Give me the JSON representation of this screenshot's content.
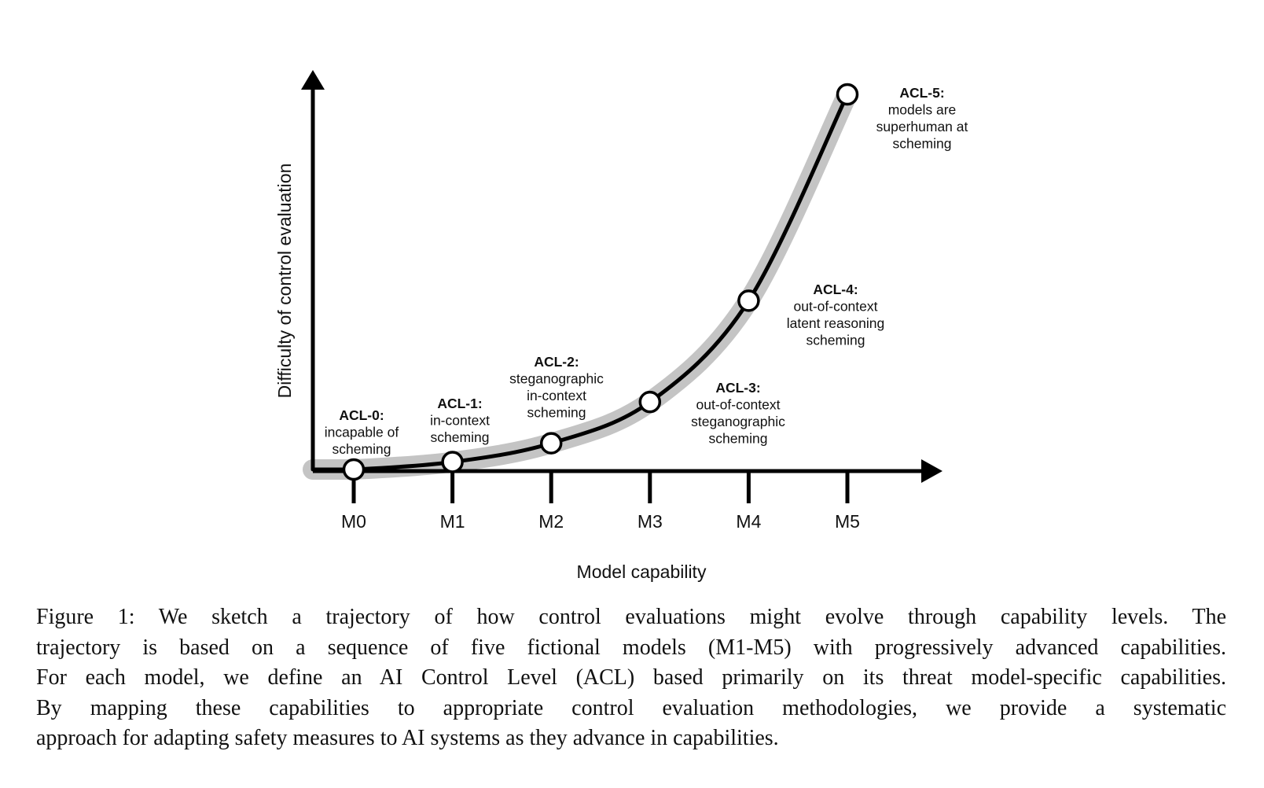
{
  "figure": {
    "y_axis_label": "Difficulty of control evaluation",
    "x_axis_label": "Model capability",
    "colors": {
      "curve": "#000000",
      "band": "#c4c4c4",
      "marker_fill": "#ffffff",
      "axis": "#000000"
    }
  },
  "chart_data": {
    "type": "line",
    "x": [
      "M0",
      "M1",
      "M2",
      "M3",
      "M4",
      "M5"
    ],
    "series": [
      {
        "values": [
          0.0,
          0.02,
          0.07,
          0.18,
          0.45,
          1.0
        ]
      }
    ],
    "ylim": [
      0,
      1.0
    ],
    "grid": false,
    "levels": [
      {
        "model": "M0",
        "title": "ACL-0:",
        "lines": [
          "incapable of",
          "scheming"
        ]
      },
      {
        "model": "M1",
        "title": "ACL-1:",
        "lines": [
          "in-context",
          "scheming"
        ]
      },
      {
        "model": "M2",
        "title": "ACL-2:",
        "lines": [
          "steganographic",
          "in-context",
          "scheming"
        ]
      },
      {
        "model": "M3",
        "title": "ACL-3:",
        "lines": [
          "out-of-context",
          "steganographic",
          "scheming"
        ]
      },
      {
        "model": "M4",
        "title": "ACL-4:",
        "lines": [
          "out-of-context",
          "latent reasoning",
          "scheming"
        ]
      },
      {
        "model": "M5",
        "title": "ACL-5:",
        "lines": [
          "models are",
          "superhuman at",
          "scheming"
        ]
      }
    ]
  },
  "caption": {
    "lines": [
      "Figure 1:  We sketch a trajectory of how control evaluations might evolve through capability levels.  The",
      "trajectory is based on a sequence of five fictional models (M1-M5) with progressively advanced capabilities.",
      "For each model, we define an AI Control Level (ACL) based primarily on its threat model-specific capabilities.",
      "By mapping these capabilities to appropriate control evaluation methodologies, we provide a systematic",
      "approach for adapting safety measures to AI systems as they advance in capabilities."
    ]
  }
}
